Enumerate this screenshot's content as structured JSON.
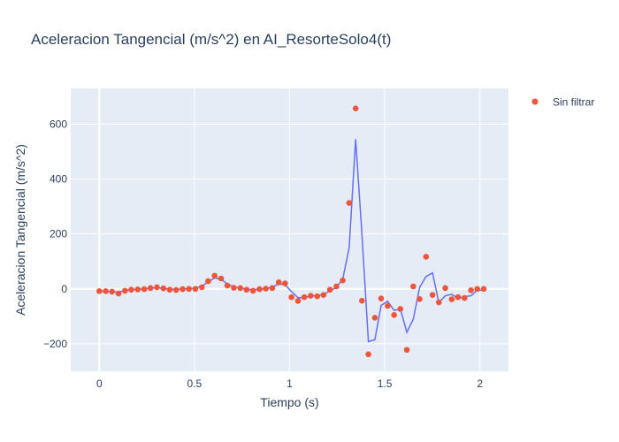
{
  "chart_data": {
    "type": "scatter",
    "title": "Aceleracion Tangencial (m/s^2) en AI_ResorteSolo4(t)",
    "xlabel": "Tiempo (s)",
    "ylabel": "Aceleracion Tangencial (m/s^2)",
    "xlim": [
      -0.15,
      2.15
    ],
    "ylim": [
      -300,
      730
    ],
    "x_ticks": [
      0,
      0.5,
      1,
      1.5,
      2
    ],
    "x_tick_labels": [
      "0",
      "0.5",
      "1",
      "1.5",
      "2"
    ],
    "y_ticks": [
      -200,
      0,
      200,
      400,
      600
    ],
    "y_tick_labels": [
      "−200",
      "0",
      "200",
      "400",
      "600"
    ],
    "grid": true,
    "legend_position": "top-right",
    "colors": {
      "plot_bg": "#e5ecf6",
      "grid": "#ffffff",
      "points": "#ef553b",
      "line": "#636efa",
      "text": "#2a3f5f"
    },
    "series": [
      {
        "name": "Sin filtrar",
        "mode": "markers",
        "x": [
          0,
          0.034,
          0.067,
          0.101,
          0.135,
          0.168,
          0.202,
          0.236,
          0.269,
          0.303,
          0.337,
          0.37,
          0.404,
          0.438,
          0.471,
          0.505,
          0.539,
          0.572,
          0.606,
          0.64,
          0.673,
          0.707,
          0.741,
          0.774,
          0.808,
          0.842,
          0.875,
          0.909,
          0.943,
          0.976,
          1.01,
          1.044,
          1.077,
          1.111,
          1.145,
          1.178,
          1.212,
          1.246,
          1.279,
          1.313,
          1.347,
          1.38,
          1.414,
          1.448,
          1.481,
          1.515,
          1.549,
          1.582,
          1.616,
          1.65,
          1.683,
          1.717,
          1.751,
          1.784,
          1.818,
          1.852,
          1.885,
          1.919,
          1.953,
          1.986,
          2.02
        ],
        "y": [
          -8,
          -8,
          -10,
          -17,
          -7,
          -3,
          -2,
          -1,
          3,
          6,
          2,
          -3,
          -4,
          -1,
          0,
          0,
          6,
          28,
          48,
          38,
          12,
          4,
          3,
          -3,
          -7,
          -1,
          1,
          3,
          24,
          20,
          -30,
          -44,
          -30,
          -25,
          -27,
          -22,
          -3,
          9,
          31,
          313,
          657,
          -43,
          -238,
          -105,
          -35,
          -62,
          -95,
          -73,
          -222,
          9,
          -37,
          117,
          -22,
          -49,
          3,
          -38,
          -30,
          -33,
          -5,
          0,
          0
        ]
      },
      {
        "mode": "lines",
        "x": [
          0,
          0.034,
          0.067,
          0.101,
          0.135,
          0.168,
          0.202,
          0.236,
          0.269,
          0.303,
          0.337,
          0.37,
          0.404,
          0.438,
          0.471,
          0.505,
          0.539,
          0.572,
          0.606,
          0.64,
          0.673,
          0.707,
          0.741,
          0.774,
          0.808,
          0.842,
          0.875,
          0.909,
          0.943,
          0.976,
          1.01,
          1.044,
          1.077,
          1.111,
          1.145,
          1.178,
          1.212,
          1.246,
          1.279,
          1.313,
          1.347,
          1.38,
          1.414,
          1.448,
          1.481,
          1.515,
          1.549,
          1.582,
          1.616,
          1.65,
          1.683,
          1.717,
          1.751,
          1.784,
          1.818,
          1.852,
          1.885,
          1.919,
          1.953,
          1.986,
          2.02
        ],
        "y": [
          -8,
          -9,
          -11,
          -12,
          -6,
          -3,
          -1,
          0,
          2,
          4,
          2,
          -1,
          -2,
          0,
          0,
          3,
          10,
          25,
          40,
          35,
          18,
          7,
          3,
          -1,
          -3,
          -1,
          1,
          6,
          18,
          15,
          -10,
          -32,
          -32,
          -26,
          -25,
          -20,
          -8,
          6,
          35,
          150,
          545,
          200,
          -192,
          -185,
          -60,
          -45,
          -78,
          -74,
          -158,
          -110,
          5,
          45,
          58,
          -50,
          -25,
          -20,
          -35,
          -28,
          -25,
          -5,
          -5
        ]
      }
    ]
  }
}
